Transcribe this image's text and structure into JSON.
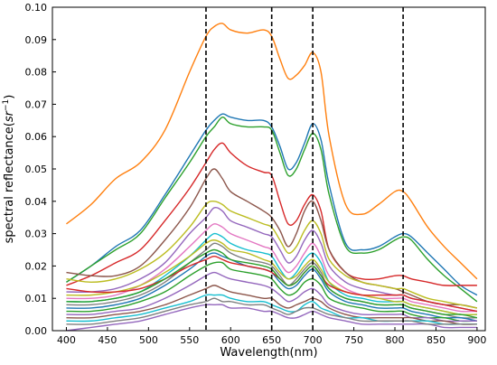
{
  "chart_data": {
    "type": "line",
    "xlabel": "Wavelength(nm)",
    "ylabel_prefix": "spectral reflectance(",
    "ylabel_unit": "sr",
    "ylabel_exp": "−1",
    "ylabel_suffix": ")",
    "xlim": [
      383,
      910
    ],
    "ylim": [
      0.0,
      0.1
    ],
    "xticks": [
      400,
      450,
      500,
      550,
      600,
      650,
      700,
      750,
      800,
      850,
      900
    ],
    "yticks": [
      0.0,
      0.01,
      0.02,
      0.03,
      0.04,
      0.05,
      0.06,
      0.07,
      0.08,
      0.09,
      0.1
    ],
    "ytick_labels": [
      "0.00",
      "0.01",
      "0.02",
      "0.03",
      "0.04",
      "0.05",
      "0.06",
      "0.07",
      "0.08",
      "0.09",
      "0.10"
    ],
    "vlines": [
      570,
      650,
      700,
      810
    ],
    "grid": false,
    "legend": "none",
    "x": [
      400,
      430,
      460,
      490,
      520,
      550,
      570,
      580,
      590,
      600,
      620,
      640,
      650,
      660,
      670,
      680,
      690,
      700,
      710,
      720,
      740,
      760,
      780,
      800,
      810,
      820,
      840,
      860,
      880,
      900
    ],
    "series": [
      {
        "color": "#ff7f0e",
        "values": [
          0.033,
          0.039,
          0.047,
          0.052,
          0.062,
          0.08,
          0.091,
          0.094,
          0.095,
          0.093,
          0.092,
          0.093,
          0.091,
          0.084,
          0.078,
          0.079,
          0.082,
          0.086,
          0.08,
          0.06,
          0.039,
          0.036,
          0.039,
          0.043,
          0.043,
          0.04,
          0.032,
          0.026,
          0.021,
          0.016
        ]
      },
      {
        "color": "#1f77b4",
        "values": [
          0.015,
          0.02,
          0.026,
          0.031,
          0.042,
          0.054,
          0.062,
          0.065,
          0.067,
          0.066,
          0.065,
          0.065,
          0.063,
          0.057,
          0.05,
          0.052,
          0.058,
          0.064,
          0.059,
          0.045,
          0.027,
          0.025,
          0.026,
          0.029,
          0.03,
          0.029,
          0.024,
          0.019,
          0.014,
          0.011
        ]
      },
      {
        "color": "#2ca02c",
        "values": [
          0.015,
          0.02,
          0.025,
          0.03,
          0.041,
          0.052,
          0.06,
          0.063,
          0.066,
          0.064,
          0.063,
          0.063,
          0.062,
          0.055,
          0.048,
          0.05,
          0.056,
          0.061,
          0.056,
          0.042,
          0.026,
          0.024,
          0.025,
          0.028,
          0.029,
          0.028,
          0.022,
          0.017,
          0.013,
          0.009
        ]
      },
      {
        "color": "#d62728",
        "values": [
          0.014,
          0.017,
          0.021,
          0.025,
          0.034,
          0.044,
          0.052,
          0.056,
          0.058,
          0.055,
          0.051,
          0.049,
          0.048,
          0.04,
          0.033,
          0.034,
          0.039,
          0.042,
          0.037,
          0.025,
          0.018,
          0.016,
          0.016,
          0.017,
          0.017,
          0.016,
          0.015,
          0.014,
          0.014,
          0.014
        ]
      },
      {
        "color": "#8c564b",
        "values": [
          0.018,
          0.017,
          0.017,
          0.02,
          0.028,
          0.038,
          0.047,
          0.05,
          0.047,
          0.043,
          0.04,
          0.037,
          0.035,
          0.031,
          0.026,
          0.03,
          0.037,
          0.04,
          0.034,
          0.025,
          0.018,
          0.015,
          0.014,
          0.013,
          0.012,
          0.011,
          0.009,
          0.008,
          0.008,
          0.007
        ]
      },
      {
        "color": "#bcbd22",
        "values": [
          0.016,
          0.015,
          0.016,
          0.019,
          0.024,
          0.032,
          0.039,
          0.04,
          0.039,
          0.037,
          0.035,
          0.033,
          0.032,
          0.028,
          0.024,
          0.026,
          0.031,
          0.034,
          0.03,
          0.022,
          0.017,
          0.015,
          0.014,
          0.013,
          0.013,
          0.012,
          0.01,
          0.009,
          0.008,
          0.007
        ]
      },
      {
        "color": "#9467bd",
        "values": [
          0.012,
          0.012,
          0.013,
          0.016,
          0.021,
          0.03,
          0.035,
          0.038,
          0.037,
          0.034,
          0.032,
          0.03,
          0.029,
          0.025,
          0.021,
          0.023,
          0.028,
          0.031,
          0.027,
          0.02,
          0.015,
          0.013,
          0.012,
          0.011,
          0.011,
          0.01,
          0.009,
          0.008,
          0.007,
          0.006
        ]
      },
      {
        "color": "#e377c2",
        "values": [
          0.01,
          0.01,
          0.011,
          0.014,
          0.019,
          0.026,
          0.031,
          0.033,
          0.032,
          0.03,
          0.028,
          0.026,
          0.025,
          0.021,
          0.018,
          0.02,
          0.024,
          0.027,
          0.023,
          0.017,
          0.013,
          0.011,
          0.01,
          0.01,
          0.01,
          0.009,
          0.008,
          0.007,
          0.006,
          0.006
        ]
      },
      {
        "color": "#17becf",
        "values": [
          0.009,
          0.009,
          0.01,
          0.012,
          0.017,
          0.023,
          0.028,
          0.03,
          0.029,
          0.027,
          0.025,
          0.024,
          0.023,
          0.019,
          0.016,
          0.018,
          0.022,
          0.024,
          0.021,
          0.015,
          0.011,
          0.01,
          0.009,
          0.009,
          0.009,
          0.008,
          0.007,
          0.006,
          0.005,
          0.005
        ]
      },
      {
        "color": "#7f7f7f",
        "values": [
          0.008,
          0.008,
          0.009,
          0.011,
          0.015,
          0.021,
          0.025,
          0.027,
          0.026,
          0.024,
          0.022,
          0.021,
          0.02,
          0.017,
          0.014,
          0.016,
          0.019,
          0.021,
          0.018,
          0.013,
          0.01,
          0.009,
          0.008,
          0.008,
          0.008,
          0.007,
          0.006,
          0.005,
          0.004,
          0.004
        ]
      },
      {
        "color": "#1f77b4",
        "values": [
          0.007,
          0.007,
          0.008,
          0.01,
          0.014,
          0.019,
          0.023,
          0.024,
          0.023,
          0.022,
          0.02,
          0.019,
          0.018,
          0.015,
          0.013,
          0.014,
          0.017,
          0.019,
          0.016,
          0.012,
          0.009,
          0.008,
          0.007,
          0.007,
          0.007,
          0.006,
          0.005,
          0.004,
          0.004,
          0.003
        ]
      },
      {
        "color": "#2ca02c",
        "values": [
          0.006,
          0.006,
          0.007,
          0.009,
          0.012,
          0.017,
          0.02,
          0.021,
          0.021,
          0.019,
          0.018,
          0.017,
          0.016,
          0.013,
          0.011,
          0.012,
          0.015,
          0.016,
          0.014,
          0.01,
          0.008,
          0.007,
          0.006,
          0.006,
          0.006,
          0.005,
          0.004,
          0.004,
          0.003,
          0.003
        ]
      },
      {
        "color": "#bcbd22",
        "values": [
          0.011,
          0.011,
          0.012,
          0.014,
          0.018,
          0.023,
          0.027,
          0.028,
          0.027,
          0.025,
          0.024,
          0.022,
          0.021,
          0.018,
          0.016,
          0.017,
          0.02,
          0.022,
          0.019,
          0.015,
          0.012,
          0.011,
          0.01,
          0.009,
          0.009,
          0.008,
          0.007,
          0.006,
          0.005,
          0.005
        ]
      },
      {
        "color": "#9467bd",
        "values": [
          0.005,
          0.005,
          0.006,
          0.007,
          0.01,
          0.014,
          0.017,
          0.018,
          0.017,
          0.016,
          0.015,
          0.014,
          0.013,
          0.011,
          0.009,
          0.01,
          0.012,
          0.013,
          0.011,
          0.008,
          0.006,
          0.005,
          0.005,
          0.005,
          0.005,
          0.004,
          0.004,
          0.003,
          0.003,
          0.003
        ]
      },
      {
        "color": "#8c564b",
        "values": [
          0.004,
          0.004,
          0.005,
          0.006,
          0.008,
          0.011,
          0.013,
          0.014,
          0.013,
          0.012,
          0.011,
          0.01,
          0.01,
          0.008,
          0.007,
          0.008,
          0.009,
          0.01,
          0.009,
          0.007,
          0.005,
          0.004,
          0.004,
          0.004,
          0.004,
          0.004,
          0.003,
          0.003,
          0.002,
          0.002
        ]
      },
      {
        "color": "#9467bd",
        "values": [
          0.0,
          0.001,
          0.002,
          0.003,
          0.005,
          0.007,
          0.008,
          0.008,
          0.008,
          0.007,
          0.007,
          0.006,
          0.006,
          0.005,
          0.004,
          0.004,
          0.005,
          0.006,
          0.005,
          0.004,
          0.003,
          0.002,
          0.002,
          0.002,
          0.002,
          0.002,
          0.002,
          0.001,
          0.001,
          0.001
        ]
      },
      {
        "color": "#17becf",
        "values": [
          0.003,
          0.003,
          0.004,
          0.005,
          0.007,
          0.009,
          0.011,
          0.011,
          0.011,
          0.01,
          0.009,
          0.009,
          0.008,
          0.007,
          0.006,
          0.006,
          0.008,
          0.009,
          0.007,
          0.006,
          0.004,
          0.004,
          0.003,
          0.003,
          0.003,
          0.003,
          0.003,
          0.002,
          0.002,
          0.002
        ]
      },
      {
        "color": "#d62728",
        "values": [
          0.013,
          0.012,
          0.012,
          0.013,
          0.016,
          0.02,
          0.022,
          0.023,
          0.022,
          0.021,
          0.02,
          0.019,
          0.018,
          0.016,
          0.014,
          0.015,
          0.018,
          0.02,
          0.017,
          0.014,
          0.012,
          0.011,
          0.011,
          0.011,
          0.011,
          0.01,
          0.009,
          0.008,
          0.007,
          0.006
        ]
      },
      {
        "color": "#2ca02c",
        "values": [
          0.009,
          0.009,
          0.01,
          0.012,
          0.016,
          0.021,
          0.024,
          0.025,
          0.024,
          0.022,
          0.021,
          0.02,
          0.019,
          0.016,
          0.014,
          0.015,
          0.018,
          0.02,
          0.017,
          0.013,
          0.01,
          0.009,
          0.008,
          0.008,
          0.008,
          0.007,
          0.006,
          0.005,
          0.005,
          0.004
        ]
      },
      {
        "color": "#7f7f7f",
        "values": [
          0.002,
          0.002,
          0.003,
          0.004,
          0.006,
          0.008,
          0.009,
          0.01,
          0.009,
          0.009,
          0.008,
          0.008,
          0.007,
          0.006,
          0.005,
          0.006,
          0.007,
          0.007,
          0.006,
          0.005,
          0.004,
          0.003,
          0.003,
          0.003,
          0.003,
          0.003,
          0.002,
          0.002,
          0.002,
          0.002
        ]
      }
    ]
  }
}
